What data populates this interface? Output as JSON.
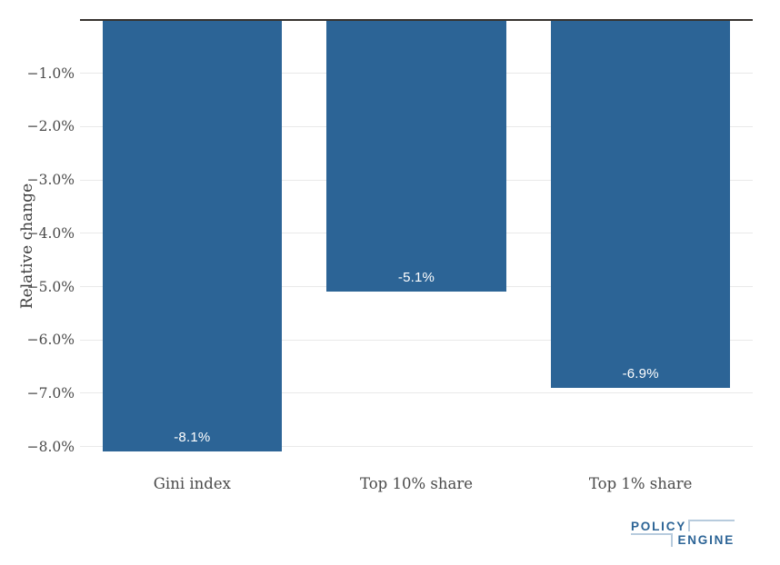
{
  "chart_data": {
    "type": "bar",
    "title": "",
    "categories": [
      "Gini index",
      "Top 10% share",
      "Top 1% share"
    ],
    "values": [
      -8.1,
      -5.1,
      -6.9
    ],
    "bar_labels": [
      "-8.1%",
      "-5.1%",
      "-6.9%"
    ],
    "xlabel": "",
    "ylabel": "Relative change",
    "ylim": [
      -8.5,
      0.35
    ],
    "grid": true,
    "legend": "none",
    "yticks": [
      {
        "value": -1.0,
        "label": "−1.0%"
      },
      {
        "value": -2.0,
        "label": "−2.0%"
      },
      {
        "value": -3.0,
        "label": "−3.0%"
      },
      {
        "value": -4.0,
        "label": "−4.0%"
      },
      {
        "value": -5.0,
        "label": "−5.0%"
      },
      {
        "value": -6.0,
        "label": "−6.0%"
      },
      {
        "value": -7.0,
        "label": "−7.0%"
      },
      {
        "value": -8.0,
        "label": "−8.0%"
      }
    ],
    "colors": {
      "bar": "#2c6496",
      "bar_label": "#ffffff",
      "zero_line": "#37332f",
      "gridline": "#e9e9e9",
      "tick_text": "#4a4a4a",
      "axis_title_text": "#3d3d3d",
      "background": "#ffffff"
    }
  },
  "logo": {
    "line1": "POLICY",
    "line2": "ENGINE",
    "dark_color": "#2c6496",
    "light_color": "#b7cbdd"
  }
}
